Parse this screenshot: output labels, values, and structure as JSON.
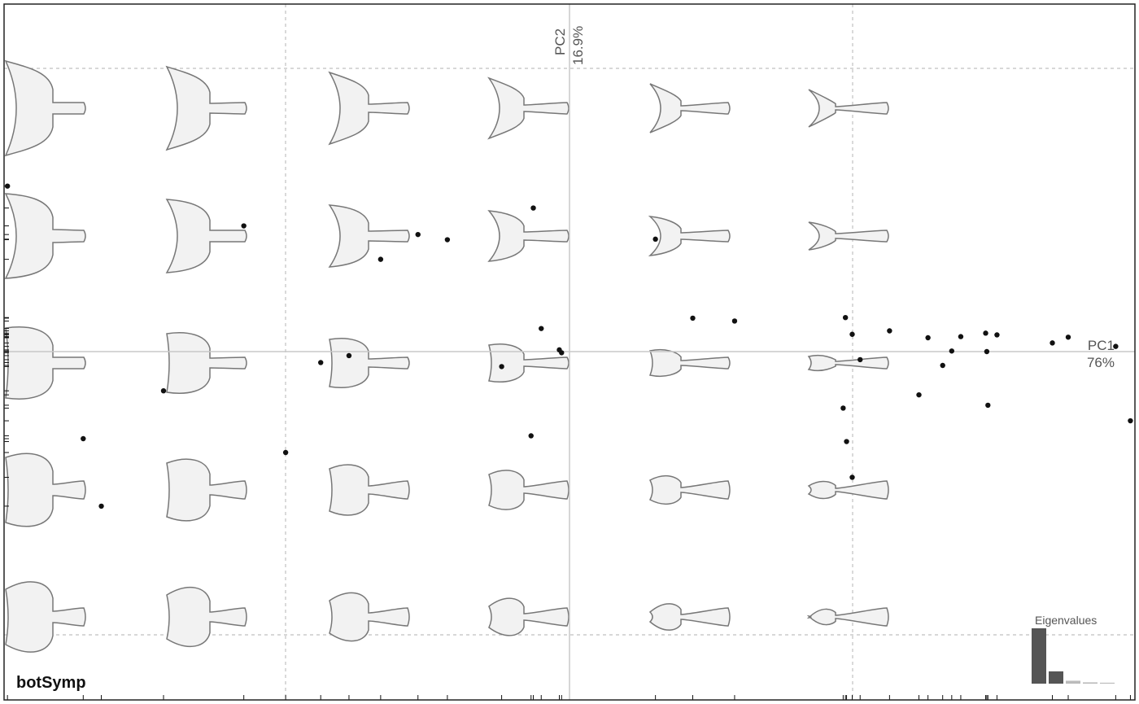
{
  "chart_data": {
    "type": "scatter",
    "title": "botSymp",
    "xlabel": "PC1",
    "xlabel_variance": "76%",
    "ylabel": "PC2",
    "ylabel_variance": "16.9%",
    "xlim": [
      -0.5,
      0.5
    ],
    "ylim": [
      -0.35,
      0.35
    ],
    "grid": false,
    "points": [
      {
        "x": -0.497,
        "y": 0.287
      },
      {
        "x": -0.43,
        "y": -0.151
      },
      {
        "x": -0.414,
        "y": -0.268
      },
      {
        "x": -0.359,
        "y": -0.068
      },
      {
        "x": -0.288,
        "y": 0.218
      },
      {
        "x": -0.251,
        "y": -0.175
      },
      {
        "x": -0.22,
        "y": -0.019
      },
      {
        "x": -0.195,
        "y": -0.007
      },
      {
        "x": -0.167,
        "y": 0.16
      },
      {
        "x": -0.134,
        "y": 0.203
      },
      {
        "x": -0.108,
        "y": 0.194
      },
      {
        "x": -0.06,
        "y": -0.026
      },
      {
        "x": -0.034,
        "y": -0.146
      },
      {
        "x": -0.032,
        "y": 0.249
      },
      {
        "x": -0.025,
        "y": 0.04
      },
      {
        "x": -0.009,
        "y": 0.003
      },
      {
        "x": -0.007,
        "y": -0.002
      },
      {
        "x": 0.076,
        "y": 0.195
      },
      {
        "x": 0.109,
        "y": 0.058
      },
      {
        "x": 0.146,
        "y": 0.053
      },
      {
        "x": 0.244,
        "y": 0.059
      },
      {
        "x": 0.242,
        "y": -0.098
      },
      {
        "x": 0.245,
        "y": -0.156
      },
      {
        "x": 0.25,
        "y": 0.03
      },
      {
        "x": 0.25,
        "y": -0.218
      },
      {
        "x": 0.257,
        "y": -0.014
      },
      {
        "x": 0.283,
        "y": 0.036
      },
      {
        "x": 0.309,
        "y": -0.075
      },
      {
        "x": 0.317,
        "y": 0.024
      },
      {
        "x": 0.33,
        "y": -0.024
      },
      {
        "x": 0.338,
        "y": 0.001
      },
      {
        "x": 0.346,
        "y": 0.026
      },
      {
        "x": 0.368,
        "y": 0.032
      },
      {
        "x": 0.37,
        "y": -0.093
      },
      {
        "x": 0.369,
        "y": 0.0
      },
      {
        "x": 0.378,
        "y": 0.029
      },
      {
        "x": 0.427,
        "y": 0.015
      },
      {
        "x": 0.441,
        "y": 0.025
      },
      {
        "x": 0.483,
        "y": 0.009
      },
      {
        "x": 0.496,
        "y": -0.12
      }
    ],
    "eigenvalues": {
      "label": "Eigenvalues",
      "values": [
        0.76,
        0.169,
        0.04,
        0.018,
        0.013
      ]
    },
    "shape_grid": {
      "columns": 6,
      "rows": 5
    }
  },
  "colors": {
    "border": "#222222",
    "axis_line": "#c8c8c8",
    "dashed_line": "#c0c0c0",
    "shape_fill": "#f2f2f2",
    "shape_stroke": "#777777",
    "point": "#111111",
    "eig_dark": "#555555",
    "eig_light": "#bbbbbb"
  }
}
